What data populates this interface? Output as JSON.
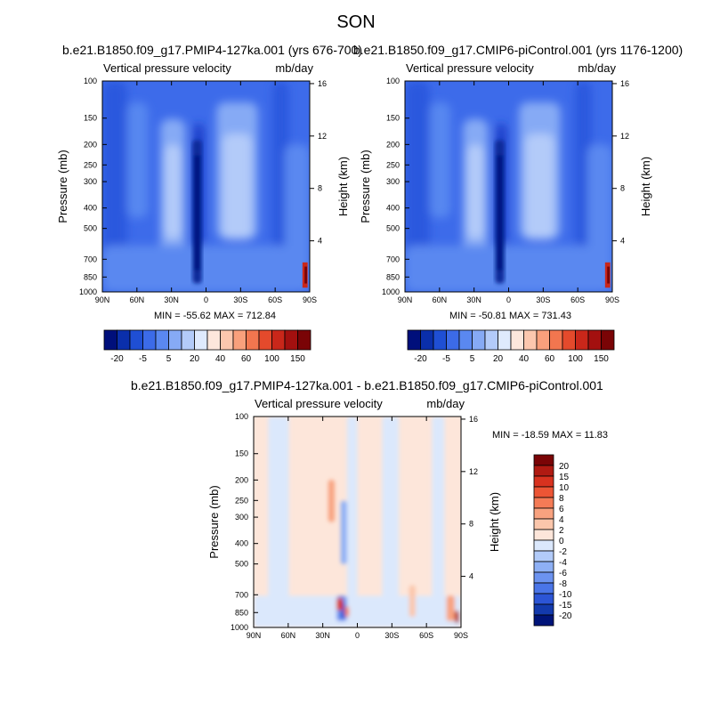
{
  "page": {
    "title": "SON"
  },
  "panels": [
    {
      "id": "p1",
      "title": "b.e21.B1850.f09_g17.PMIP4-127ka.001 (yrs 676-700)",
      "left_string": "Vertical pressure velocity",
      "right_string": "mb/day",
      "minmax": "MIN = -55.62   MAX = 712.84"
    },
    {
      "id": "p2",
      "title": "b.e21.B1850.f09_g17.CMIP6-piControl.001 (yrs 1176-1200)",
      "left_string": "Vertical pressure velocity",
      "right_string": "mb/day",
      "minmax": "MIN = -50.81   MAX = 731.43"
    },
    {
      "id": "p3",
      "title": "b.e21.B1850.f09_g17.PMIP4-127ka.001 - b.e21.B1850.f09_g17.CMIP6-piControl.001",
      "left_string": "Vertical pressure velocity",
      "right_string": "mb/day",
      "minmax": "MIN = -18.59   MAX =  11.83"
    }
  ],
  "chart_data": [
    {
      "type": "heatmap",
      "title": "b.e21.B1850.f09_g17.PMIP4-127ka.001 (yrs 676-700)",
      "ylabel": "Pressure (mb)",
      "ylabel_right": "Height (km)",
      "x_ticks": [
        "90N",
        "60N",
        "30N",
        "0",
        "30S",
        "60S",
        "90S"
      ],
      "y_ticks": [
        "100",
        "150",
        "200",
        "250",
        "300",
        "400",
        "500",
        "700",
        "850",
        "1000"
      ],
      "y_right_ticks": [
        "16",
        "12",
        "8",
        "4"
      ],
      "ylim": [
        100,
        1000
      ],
      "y_scale": "log",
      "min": -55.62,
      "max": 712.84,
      "colorbar_labels": [
        "-20",
        "-5",
        "5",
        "20",
        "40",
        "60",
        "100",
        "150"
      ],
      "colorbar_colors": [
        "#000f7b",
        "#0a2fab",
        "#1f4fd4",
        "#3c6be8",
        "#5a88f0",
        "#86aaf5",
        "#b3cbf9",
        "#dfeafd",
        "#fde7dc",
        "#fcc7ae",
        "#f9a07c",
        "#f2764f",
        "#e44a2c",
        "#c9271a",
        "#a3100f",
        "#7a0406"
      ]
    },
    {
      "type": "heatmap",
      "title": "b.e21.B1850.f09_g17.CMIP6-piControl.001 (yrs 1176-1200)",
      "ylabel": "Pressure (mb)",
      "ylabel_right": "Height (km)",
      "x_ticks": [
        "90N",
        "60N",
        "30N",
        "0",
        "30S",
        "60S",
        "90S"
      ],
      "y_ticks": [
        "100",
        "150",
        "200",
        "250",
        "300",
        "400",
        "500",
        "700",
        "850",
        "1000"
      ],
      "y_right_ticks": [
        "16",
        "12",
        "8",
        "4"
      ],
      "ylim": [
        100,
        1000
      ],
      "y_scale": "log",
      "min": -50.81,
      "max": 731.43,
      "colorbar_labels": [
        "-20",
        "-5",
        "5",
        "20",
        "40",
        "60",
        "100",
        "150"
      ],
      "colorbar_colors": [
        "#000f7b",
        "#0a2fab",
        "#1f4fd4",
        "#3c6be8",
        "#5a88f0",
        "#86aaf5",
        "#b3cbf9",
        "#dfeafd",
        "#fde7dc",
        "#fcc7ae",
        "#f9a07c",
        "#f2764f",
        "#e44a2c",
        "#c9271a",
        "#a3100f",
        "#7a0406"
      ]
    },
    {
      "type": "heatmap",
      "title": "b.e21.B1850.f09_g17.PMIP4-127ka.001 - b.e21.B1850.f09_g17.CMIP6-piControl.001",
      "ylabel": "Pressure (mb)",
      "ylabel_right": "Height (km)",
      "x_ticks": [
        "90N",
        "60N",
        "30N",
        "0",
        "30S",
        "60S",
        "90S"
      ],
      "y_ticks": [
        "100",
        "150",
        "200",
        "250",
        "300",
        "400",
        "500",
        "700",
        "850",
        "1000"
      ],
      "y_right_ticks": [
        "16",
        "12",
        "8",
        "4"
      ],
      "ylim": [
        100,
        1000
      ],
      "y_scale": "log",
      "min": -18.59,
      "max": 11.83,
      "colorbar_labels": [
        "20",
        "15",
        "10",
        "8",
        "6",
        "4",
        "2",
        "0",
        "-2",
        "-4",
        "-6",
        "-8",
        "-10",
        "-15",
        "-20"
      ],
      "colorbar_colors": [
        "#7a0406",
        "#b01a12",
        "#d8321f",
        "#ec5535",
        "#f47b56",
        "#f8a27f",
        "#fbc6ab",
        "#fde6da",
        "#dbe8fc",
        "#b2cbf9",
        "#8eb0f5",
        "#6c93f0",
        "#4a75e8",
        "#2c55d6",
        "#133aad",
        "#001479"
      ]
    }
  ]
}
